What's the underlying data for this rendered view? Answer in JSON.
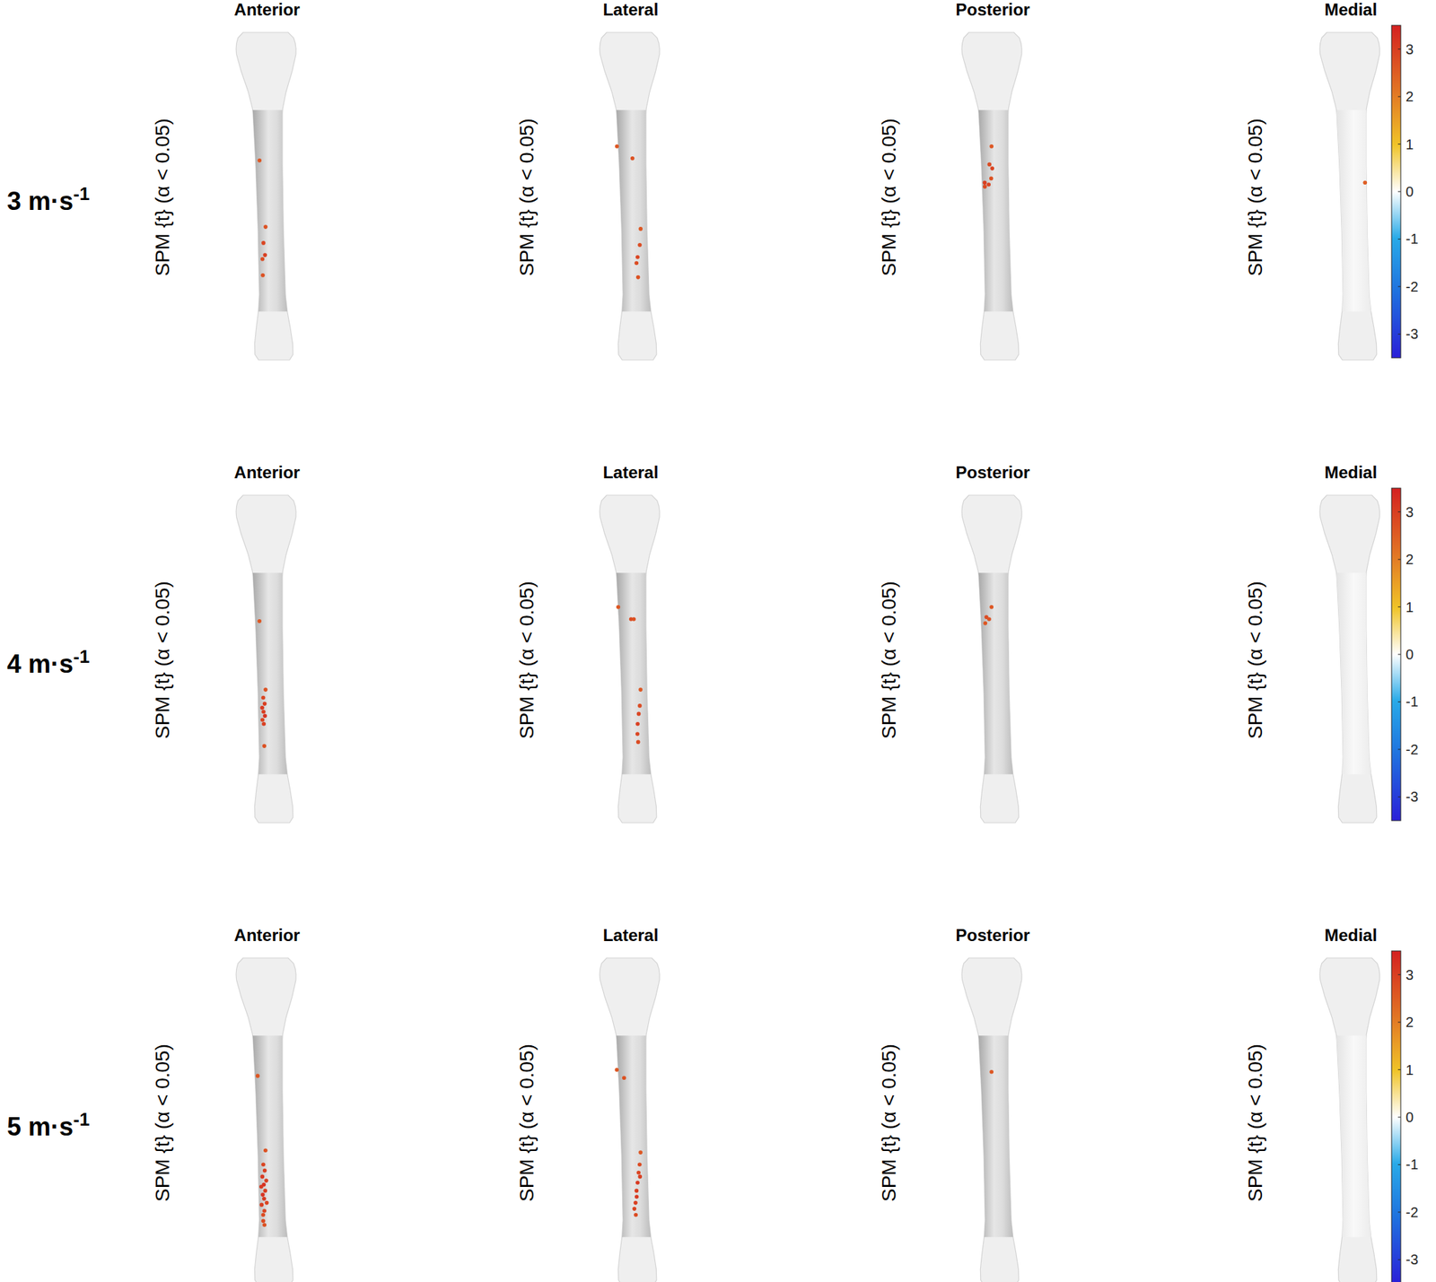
{
  "chart_data": {
    "type": "spm_surface_map",
    "views": [
      "Anterior",
      "Lateral",
      "Posterior",
      "Medial"
    ],
    "y_label": "SPM {t} (α < 0.05)",
    "colorbar": {
      "range": [
        -3.5,
        3.5
      ],
      "ticks": [
        -3,
        -2,
        -1,
        0,
        1,
        2,
        3
      ]
    },
    "rows": [
      {
        "speed": "3",
        "unit": "m·s",
        "unit_exponent": "-1",
        "points": [
          [
            {
              "s": 0.25,
              "c": -0.35,
              "t": 2.6
            },
            {
              "s": 0.58,
              "c": -0.2,
              "t": 2.7
            },
            {
              "s": 0.66,
              "c": -0.3,
              "t": 2.9
            },
            {
              "s": 0.72,
              "c": -0.25,
              "t": 3.0
            },
            {
              "s": 0.74,
              "c": -0.35,
              "t": 2.8
            },
            {
              "s": 0.82,
              "c": -0.35,
              "t": 2.7
            }
          ],
          [
            {
              "s": 0.18,
              "c": -0.55,
              "t": 2.6
            },
            {
              "s": 0.24,
              "c": 0.0,
              "t": 2.7
            },
            {
              "s": 0.59,
              "c": 0.25,
              "t": 2.6
            },
            {
              "s": 0.67,
              "c": 0.2,
              "t": 2.8
            },
            {
              "s": 0.73,
              "c": 0.1,
              "t": 2.9
            },
            {
              "s": 0.76,
              "c": 0.05,
              "t": 2.8
            },
            {
              "s": 0.83,
              "c": 0.1,
              "t": 2.7
            }
          ],
          [
            {
              "s": 0.18,
              "c": -0.1,
              "t": 2.6
            },
            {
              "s": 0.27,
              "c": -0.2,
              "t": 2.8
            },
            {
              "s": 0.29,
              "c": -0.1,
              "t": 2.9
            },
            {
              "s": 0.36,
              "c": -0.4,
              "t": 3.0
            },
            {
              "s": 0.37,
              "c": -0.25,
              "t": 2.9
            },
            {
              "s": 0.38,
              "c": -0.4,
              "t": 2.8
            },
            {
              "s": 0.34,
              "c": -0.15,
              "t": 2.7
            }
          ],
          [
            {
              "s": 0.36,
              "c": 0.45,
              "t": 2.5
            }
          ]
        ]
      },
      {
        "speed": "4",
        "unit": "m·s",
        "unit_exponent": "-1",
        "points": [
          [
            {
              "s": 0.24,
              "c": -0.35,
              "t": 2.6
            },
            {
              "s": 0.58,
              "c": -0.2,
              "t": 2.7
            },
            {
              "s": 0.62,
              "c": -0.3,
              "t": 2.9
            },
            {
              "s": 0.65,
              "c": -0.25,
              "t": 3.0
            },
            {
              "s": 0.67,
              "c": -0.35,
              "t": 3.1
            },
            {
              "s": 0.69,
              "c": -0.3,
              "t": 3.0
            },
            {
              "s": 0.71,
              "c": -0.25,
              "t": 3.2
            },
            {
              "s": 0.73,
              "c": -0.35,
              "t": 2.9
            },
            {
              "s": 0.75,
              "c": -0.3,
              "t": 3.0
            },
            {
              "s": 0.86,
              "c": -0.3,
              "t": 2.7
            }
          ],
          [
            {
              "s": 0.17,
              "c": -0.5,
              "t": 2.6
            },
            {
              "s": 0.23,
              "c": -0.05,
              "t": 2.8
            },
            {
              "s": 0.23,
              "c": 0.05,
              "t": 2.7
            },
            {
              "s": 0.58,
              "c": 0.25,
              "t": 2.6
            },
            {
              "s": 0.66,
              "c": 0.2,
              "t": 2.8
            },
            {
              "s": 0.7,
              "c": 0.15,
              "t": 2.9
            },
            {
              "s": 0.75,
              "c": 0.1,
              "t": 3.0
            },
            {
              "s": 0.8,
              "c": 0.08,
              "t": 2.9
            },
            {
              "s": 0.84,
              "c": 0.1,
              "t": 2.8
            }
          ],
          [
            {
              "s": 0.17,
              "c": -0.1,
              "t": 2.6
            },
            {
              "s": 0.22,
              "c": -0.3,
              "t": 2.8
            },
            {
              "s": 0.23,
              "c": -0.2,
              "t": 2.7
            },
            {
              "s": 0.25,
              "c": -0.35,
              "t": 2.6
            }
          ],
          []
        ]
      },
      {
        "speed": "5",
        "unit": "m·s",
        "unit_exponent": "-1",
        "points": [
          [
            {
              "s": 0.2,
              "c": -0.4,
              "t": 2.6
            },
            {
              "s": 0.57,
              "c": -0.2,
              "t": 2.7
            },
            {
              "s": 0.64,
              "c": -0.3,
              "t": 2.9
            },
            {
              "s": 0.67,
              "c": -0.25,
              "t": 3.0
            },
            {
              "s": 0.7,
              "c": -0.35,
              "t": 3.1
            },
            {
              "s": 0.72,
              "c": -0.2,
              "t": 3.0
            },
            {
              "s": 0.74,
              "c": -0.3,
              "t": 3.2
            },
            {
              "s": 0.75,
              "c": -0.4,
              "t": 3.1
            },
            {
              "s": 0.77,
              "c": -0.25,
              "t": 3.0
            },
            {
              "s": 0.79,
              "c": -0.35,
              "t": 3.2
            },
            {
              "s": 0.81,
              "c": -0.3,
              "t": 3.1
            },
            {
              "s": 0.83,
              "c": -0.2,
              "t": 2.9
            },
            {
              "s": 0.84,
              "c": -0.4,
              "t": 3.0
            },
            {
              "s": 0.87,
              "c": -0.3,
              "t": 2.9
            },
            {
              "s": 0.89,
              "c": -0.35,
              "t": 2.8
            },
            {
              "s": 0.92,
              "c": -0.35,
              "t": 2.8
            },
            {
              "s": 0.94,
              "c": -0.3,
              "t": 2.7
            }
          ],
          [
            {
              "s": 0.17,
              "c": -0.55,
              "t": 2.6
            },
            {
              "s": 0.21,
              "c": -0.3,
              "t": 2.7
            },
            {
              "s": 0.58,
              "c": 0.25,
              "t": 2.6
            },
            {
              "s": 0.64,
              "c": 0.2,
              "t": 2.8
            },
            {
              "s": 0.68,
              "c": 0.15,
              "t": 2.9
            },
            {
              "s": 0.7,
              "c": 0.2,
              "t": 3.0
            },
            {
              "s": 0.73,
              "c": 0.1,
              "t": 3.1
            },
            {
              "s": 0.77,
              "c": 0.05,
              "t": 3.0
            },
            {
              "s": 0.8,
              "c": 0.05,
              "t": 3.1
            },
            {
              "s": 0.83,
              "c": 0.0,
              "t": 3.0
            },
            {
              "s": 0.86,
              "c": -0.05,
              "t": 2.9
            },
            {
              "s": 0.89,
              "c": 0.0,
              "t": 2.8
            }
          ],
          [
            {
              "s": 0.18,
              "c": -0.1,
              "t": 2.6
            }
          ],
          []
        ]
      }
    ]
  }
}
